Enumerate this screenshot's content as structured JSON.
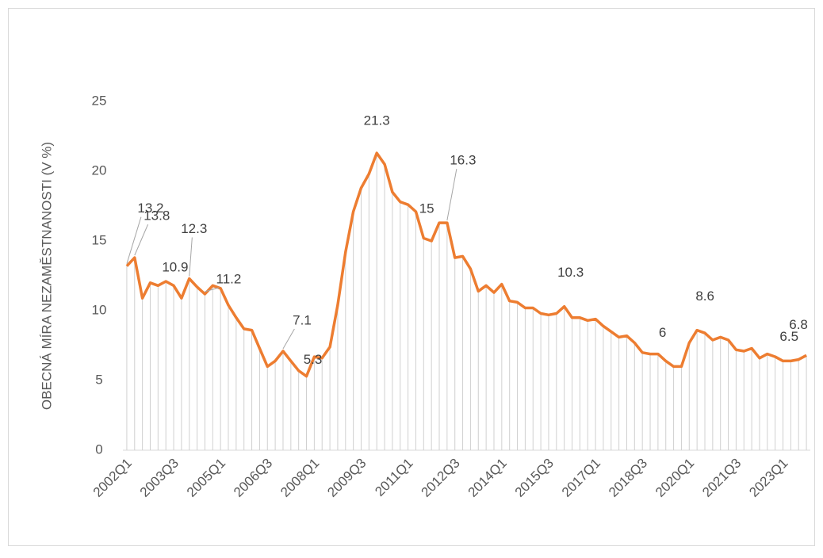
{
  "chart_data": {
    "type": "line",
    "y_label": "OBECNÁ MÍRA NEZAMĚSTNANOSTI (V %)",
    "categories": [
      "2002Q1",
      null,
      null,
      null,
      null,
      null,
      "2003Q3",
      null,
      null,
      null,
      null,
      null,
      "2005Q1",
      null,
      null,
      null,
      null,
      null,
      "2006Q3",
      null,
      null,
      null,
      null,
      null,
      "2008Q1",
      null,
      null,
      null,
      null,
      null,
      "2009Q3",
      null,
      null,
      null,
      null,
      null,
      "2011Q1",
      null,
      null,
      null,
      null,
      null,
      "2012Q3",
      null,
      null,
      null,
      null,
      null,
      "2014Q1",
      null,
      null,
      null,
      null,
      null,
      "2015Q3",
      null,
      null,
      null,
      null,
      null,
      "2017Q1",
      null,
      null,
      null,
      null,
      null,
      "2018Q3",
      null,
      null,
      null,
      null,
      null,
      "2020Q1",
      null,
      null,
      null,
      null,
      null,
      "2021Q3",
      null,
      null,
      null,
      null,
      null,
      "2023Q1",
      null,
      null,
      null
    ],
    "values": [
      13.2,
      13.8,
      10.9,
      12.0,
      11.8,
      12.1,
      11.8,
      10.9,
      12.3,
      11.7,
      11.2,
      11.8,
      11.6,
      10.4,
      9.5,
      8.7,
      8.6,
      7.3,
      6.0,
      6.4,
      7.1,
      6.4,
      5.7,
      5.3,
      6.7,
      6.6,
      7.4,
      10.4,
      14.2,
      17.1,
      18.8,
      19.8,
      21.3,
      20.5,
      18.5,
      17.8,
      17.6,
      17.1,
      15.2,
      15,
      16.3,
      16.3,
      13.8,
      13.9,
      13.0,
      11.4,
      11.8,
      11.3,
      11.9,
      10.7,
      10.6,
      10.2,
      10.2,
      9.8,
      9.7,
      9.8,
      10.3,
      9.5,
      9.5,
      9.3,
      9.4,
      8.9,
      8.5,
      8.1,
      8.2,
      7.7,
      7.0,
      6.9,
      6.9,
      6.4,
      6,
      6.0,
      7.7,
      8.6,
      8.4,
      7.9,
      8.1,
      7.9,
      7.2,
      7.1,
      7.3,
      6.6,
      6.9,
      6.7,
      6.4,
      6.4,
      6.5,
      6.8
    ],
    "value_labels": [
      "13.2",
      "13.8",
      null,
      null,
      null,
      null,
      null,
      "10.9",
      "12.3",
      null,
      "11.2",
      null,
      null,
      null,
      null,
      null,
      null,
      null,
      null,
      null,
      "7.1",
      null,
      null,
      "5.3",
      null,
      null,
      null,
      null,
      null,
      null,
      null,
      null,
      "21.3",
      null,
      null,
      null,
      null,
      null,
      null,
      "15",
      null,
      "16.3",
      null,
      null,
      null,
      null,
      null,
      null,
      null,
      null,
      null,
      null,
      null,
      null,
      null,
      null,
      "10.3",
      null,
      null,
      null,
      null,
      null,
      null,
      null,
      null,
      null,
      null,
      null,
      null,
      null,
      "6",
      null,
      null,
      "8.6",
      null,
      null,
      null,
      null,
      null,
      null,
      null,
      null,
      null,
      null,
      null,
      null,
      "6.5",
      "6.8"
    ],
    "color": "#ed7d31",
    "drop_color": "#d0d0d0",
    "ylim": [
      0,
      25
    ],
    "yticks": [
      0,
      5,
      10,
      15,
      20,
      25
    ]
  }
}
